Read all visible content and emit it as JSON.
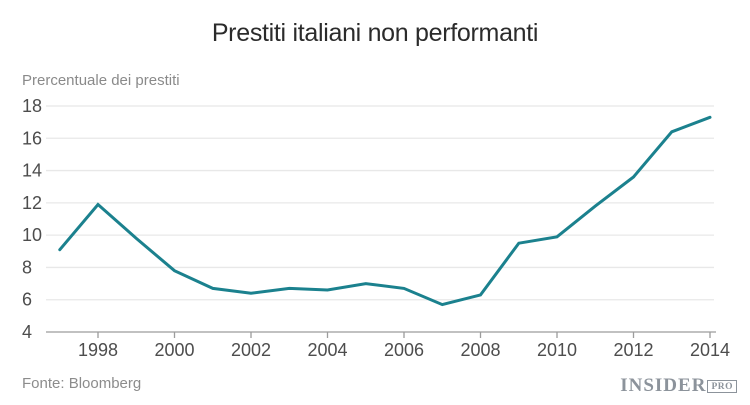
{
  "chart_data": {
    "type": "line",
    "title": "Prestiti italiani non performanti",
    "ylabel": "Prercentuale dei prestiti",
    "xlabel": "",
    "x": [
      1997,
      1998,
      1999,
      2000,
      2001,
      2002,
      2003,
      2004,
      2005,
      2006,
      2007,
      2008,
      2009,
      2010,
      2011,
      2012,
      2013,
      2014
    ],
    "series": [
      {
        "name": "Prestiti italiani non performanti (% dei prestiti)",
        "values": [
          9.1,
          11.9,
          9.8,
          7.8,
          6.7,
          6.4,
          6.7,
          6.6,
          7.0,
          6.7,
          5.7,
          6.3,
          9.5,
          9.9,
          11.8,
          13.6,
          16.4,
          17.3
        ]
      }
    ],
    "x_ticks": [
      1998,
      2000,
      2002,
      2004,
      2006,
      2008,
      2010,
      2012,
      2014
    ],
    "y_ticks": [
      4,
      6,
      8,
      10,
      12,
      14,
      16,
      18
    ],
    "ylim": [
      4,
      18
    ],
    "xlim": [
      1996.9,
      2014.15
    ],
    "grid": "horizontal",
    "legend_position": "none"
  },
  "footer": {
    "source": "Fonte: Bloomberg",
    "logo_main": "INSIDER",
    "logo_sub": "PRO"
  },
  "colors": {
    "line": "#1b818e",
    "grid": "#e8e8e8",
    "axis": "#9c9c9c",
    "tick_label": "#4d4d4d",
    "title": "#2b2b2b",
    "muted_text": "#8a8a8a",
    "logo": "#8c939b"
  }
}
